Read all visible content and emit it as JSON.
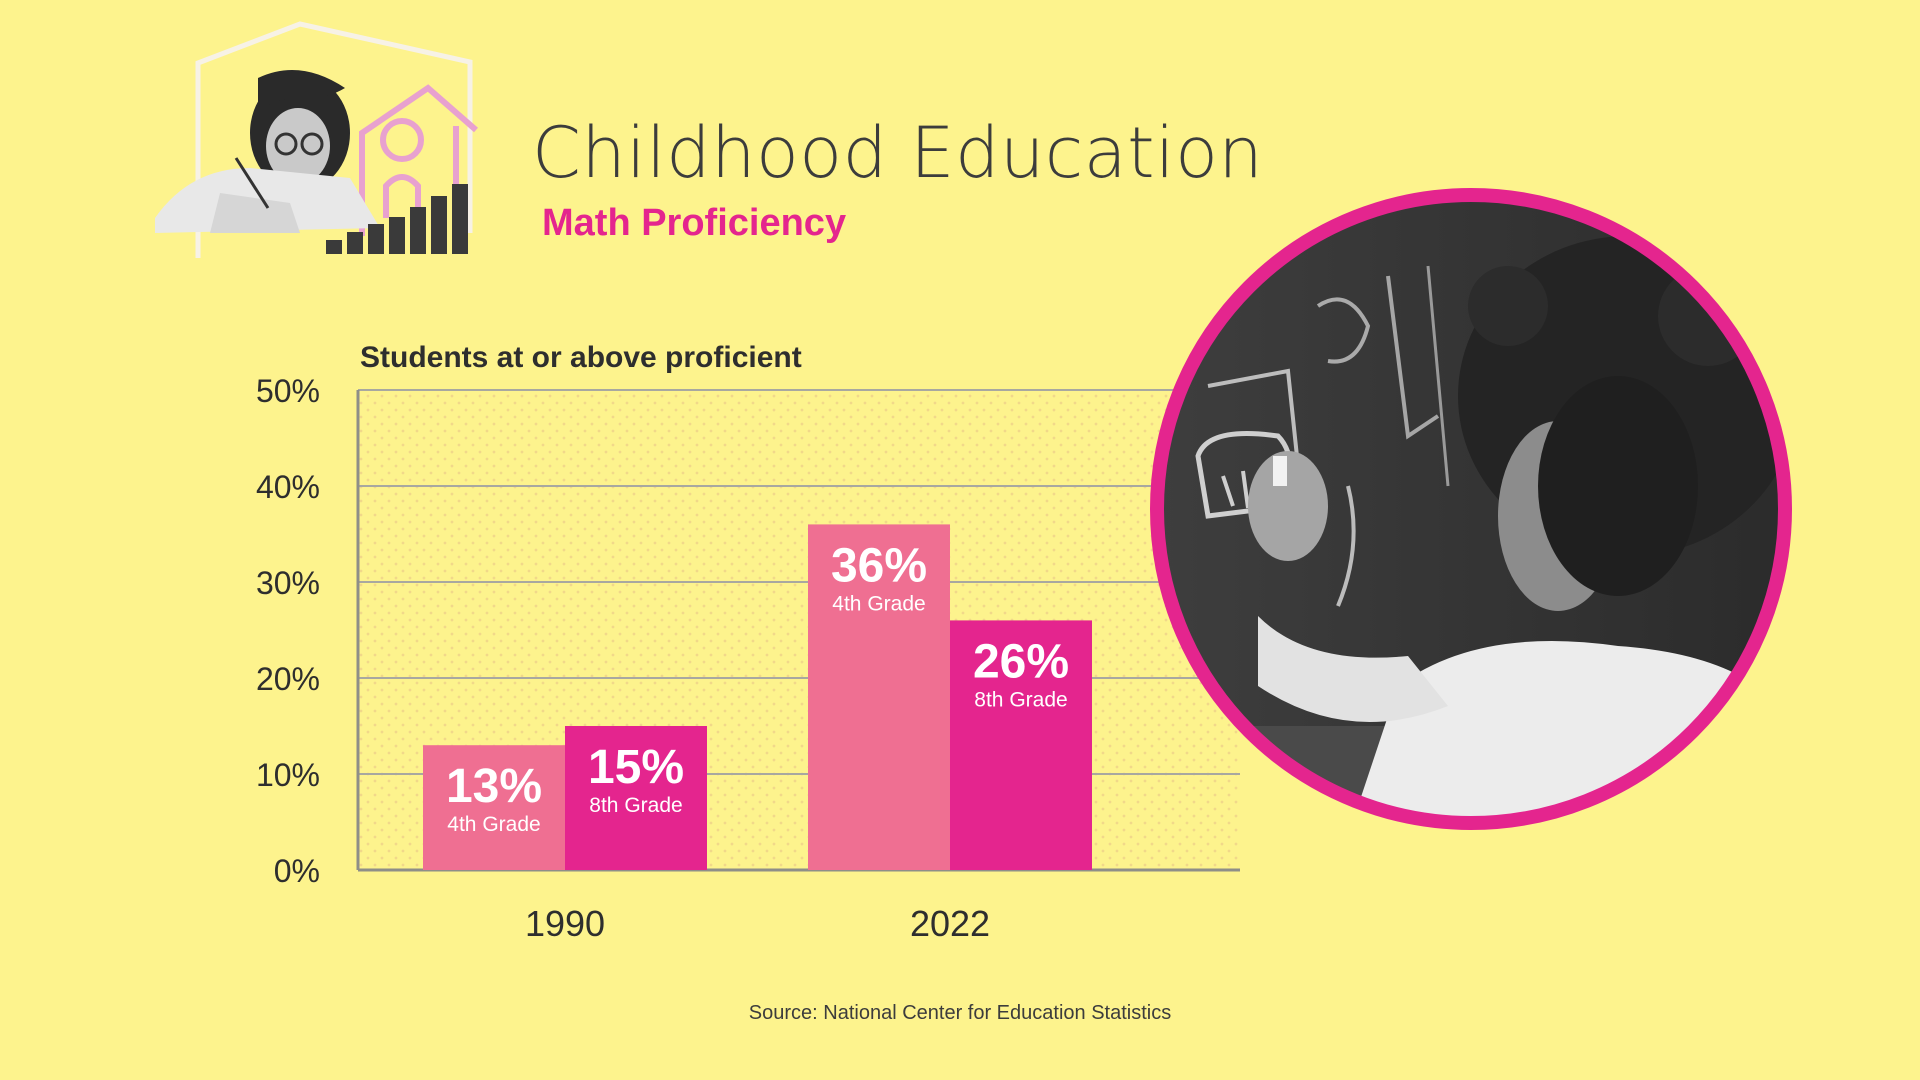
{
  "header": {
    "title": "Childhood Education",
    "subtitle": "Math Proficiency",
    "icon": "student-house-bars-icon"
  },
  "colors": {
    "background": "#fdf38d",
    "grade4": "#ef6f92",
    "grade8": "#e4258e",
    "accent": "#e4258e"
  },
  "chart_data": {
    "type": "bar",
    "ylabel": "Students at or above proficient",
    "xlabel": "",
    "categories": [
      "1990",
      "2022"
    ],
    "ylim": [
      0,
      50
    ],
    "yticks": [
      "0%",
      "10%",
      "20%",
      "30%",
      "40%",
      "50%"
    ],
    "grid": true,
    "series": [
      {
        "name": "4th Grade",
        "values": [
          13,
          36
        ],
        "labels": [
          "13%",
          "36%"
        ]
      },
      {
        "name": "8th Grade",
        "values": [
          15,
          26
        ],
        "labels": [
          "15%",
          "26%"
        ]
      }
    ]
  },
  "photo": {
    "icon": "girl-writing-on-chalkboard-photo"
  },
  "footer": {
    "source": "Source: National Center for Education Statistics"
  }
}
